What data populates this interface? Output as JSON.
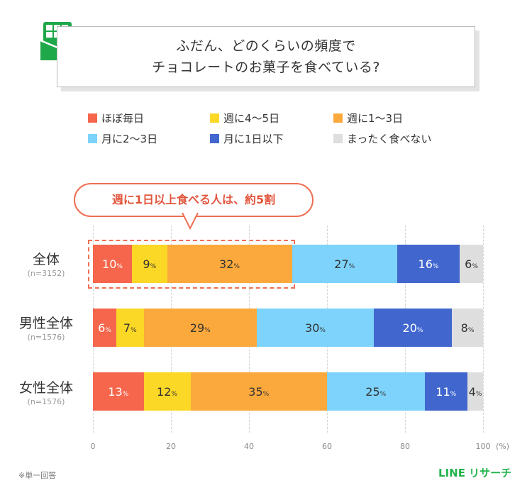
{
  "title": {
    "line1": "ふだん、どのくらいの頻度で",
    "line2": "チョコレートのお菓子を食べている?"
  },
  "legend": [
    {
      "label": "ほぼ毎日",
      "color": "#f5664c"
    },
    {
      "label": "週に4～5日",
      "color": "#fbd726"
    },
    {
      "label": "週に1～3日",
      "color": "#fba93c"
    },
    {
      "label": "月に2～3日",
      "color": "#7dd3fb"
    },
    {
      "label": "月に1日以下",
      "color": "#4167cf"
    },
    {
      "label": "まったく食べない",
      "color": "#dedede"
    }
  ],
  "callout": {
    "text": "週に1日以上食べる人は、約5割"
  },
  "footnote": "※単一回答",
  "brand": "LINE リサーチ",
  "chart_data": {
    "type": "bar",
    "orientation": "horizontal",
    "stacked": true,
    "categories": [
      "全体",
      "男性全体",
      "女性全体"
    ],
    "sample_sizes": [
      "(n=3152)",
      "(n=1576)",
      "(n=1576)"
    ],
    "series": [
      {
        "name": "ほぼ毎日",
        "values": [
          10,
          6,
          13
        ]
      },
      {
        "name": "週に4～5日",
        "values": [
          9,
          7,
          12
        ]
      },
      {
        "name": "週に1～3日",
        "values": [
          32,
          29,
          35
        ]
      },
      {
        "name": "月に2～3日",
        "values": [
          27,
          30,
          25
        ]
      },
      {
        "name": "月に1日以下",
        "values": [
          16,
          20,
          11
        ]
      },
      {
        "name": "まったく食べない",
        "values": [
          6,
          8,
          4
        ]
      }
    ],
    "xlim": [
      0,
      100
    ],
    "xticks": [
      "0",
      "20",
      "40",
      "60",
      "80",
      "100"
    ],
    "xunit": "(%)",
    "value_suffix": "%",
    "grid": true,
    "legend_position": "top"
  }
}
